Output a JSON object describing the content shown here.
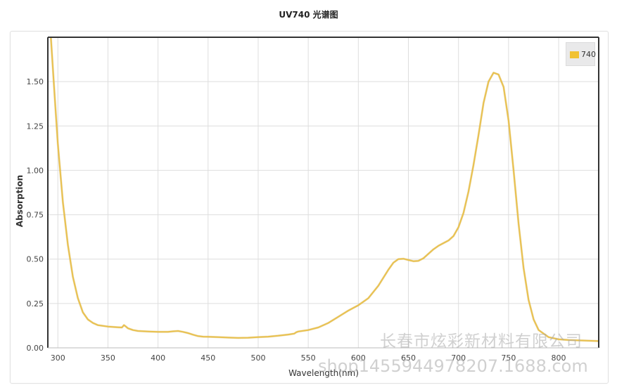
{
  "chart_data": {
    "type": "line",
    "title": "UV740 光谱图",
    "xlabel": "Wavelength(nm)",
    "ylabel": "Absorption",
    "xlim": [
      290,
      840
    ],
    "ylim": [
      0,
      1.75
    ],
    "grid": true,
    "legend_position": "top-right",
    "x_ticks": [
      "300",
      "350",
      "400",
      "450",
      "500",
      "550",
      "600",
      "650",
      "700",
      "750",
      "800"
    ],
    "y_ticks": [
      "0.00",
      "0.25",
      "0.50",
      "0.75",
      "1.00",
      "1.25",
      "1.50"
    ],
    "series": [
      {
        "name": "740",
        "color": "#e9c14f",
        "x": [
          293,
          297,
          300,
          305,
          310,
          315,
          320,
          325,
          330,
          335,
          340,
          345,
          350,
          355,
          360,
          364,
          366,
          368,
          370,
          375,
          380,
          390,
          400,
          410,
          415,
          420,
          425,
          430,
          435,
          440,
          445,
          450,
          460,
          470,
          480,
          490,
          500,
          510,
          520,
          530,
          536,
          538,
          540,
          550,
          560,
          570,
          580,
          590,
          600,
          610,
          620,
          630,
          635,
          640,
          645,
          650,
          655,
          660,
          665,
          670,
          675,
          680,
          685,
          690,
          695,
          700,
          705,
          710,
          715,
          720,
          725,
          730,
          735,
          740,
          745,
          750,
          755,
          760,
          765,
          770,
          775,
          780,
          790,
          800,
          810,
          820,
          830,
          840
        ],
        "y": [
          1.75,
          1.4,
          1.15,
          0.82,
          0.58,
          0.4,
          0.28,
          0.2,
          0.16,
          0.14,
          0.128,
          0.124,
          0.12,
          0.118,
          0.116,
          0.115,
          0.128,
          0.12,
          0.11,
          0.1,
          0.095,
          0.092,
          0.09,
          0.09,
          0.093,
          0.095,
          0.09,
          0.083,
          0.074,
          0.066,
          0.063,
          0.062,
          0.06,
          0.058,
          0.056,
          0.057,
          0.06,
          0.063,
          0.068,
          0.075,
          0.08,
          0.088,
          0.092,
          0.1,
          0.115,
          0.14,
          0.175,
          0.21,
          0.24,
          0.28,
          0.35,
          0.44,
          0.48,
          0.5,
          0.502,
          0.495,
          0.488,
          0.49,
          0.505,
          0.53,
          0.555,
          0.575,
          0.59,
          0.605,
          0.63,
          0.68,
          0.76,
          0.88,
          1.03,
          1.2,
          1.38,
          1.5,
          1.55,
          1.54,
          1.47,
          1.28,
          1.0,
          0.7,
          0.45,
          0.27,
          0.16,
          0.1,
          0.06,
          0.048,
          0.044,
          0.042,
          0.04,
          0.038
        ]
      }
    ]
  },
  "watermarks": {
    "company": "长春市炫彩新材料有限公司",
    "shop": "shop1455944978207.1688.com"
  }
}
